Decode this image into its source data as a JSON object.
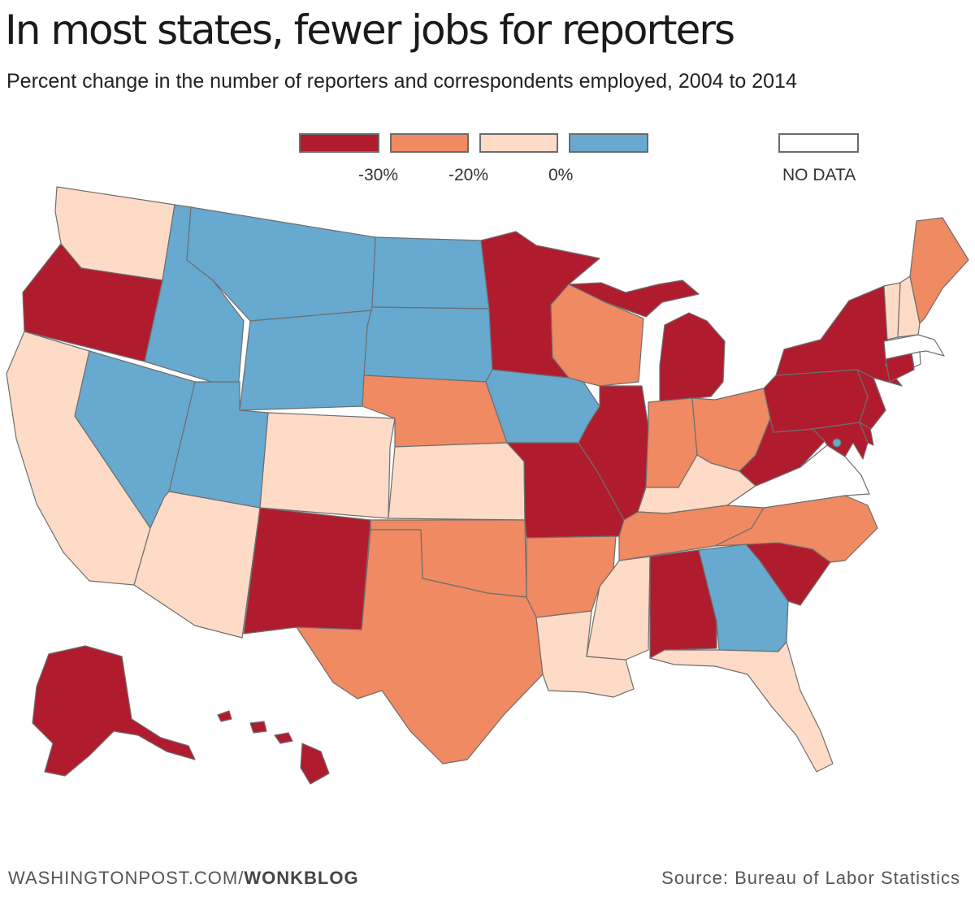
{
  "header": {
    "title": "In most states, fewer jobs for reporters",
    "subtitle": "Percent change in the number of reporters and correspondents employed, 2004 to 2014"
  },
  "legend": {
    "bins": [
      {
        "label": "below -30%",
        "color": "#b01c2e"
      },
      {
        "label": "-30% to -20%",
        "color": "#ef8a62"
      },
      {
        "label": "-20% to 0%",
        "color": "#fddbc7"
      },
      {
        "label": "above 0%",
        "color": "#67a9cf"
      }
    ],
    "breaks": [
      "-30%",
      "-20%",
      "0%"
    ],
    "no_data": {
      "label": "NO DATA",
      "color": "#ffffff"
    }
  },
  "colors": {
    "strong_decline": "#b01c2e",
    "moderate_decline": "#ef8a62",
    "slight_decline": "#fddbc7",
    "increase": "#67a9cf",
    "no_data": "#ffffff",
    "border": "#6e6e6e"
  },
  "chart_data": {
    "type": "choropleth",
    "title": "In most states, fewer jobs for reporters",
    "subtitle": "Percent change in the number of reporters and correspondents employed, 2004 to 2014",
    "bins": [
      "< -30%",
      "-30% to -20%",
      "-20% to 0%",
      "> 0%",
      "no data"
    ],
    "states": {
      "WA": "-20% to 0%",
      "OR": "< -30%",
      "CA": "-20% to 0%",
      "NV": "> 0%",
      "ID": "> 0%",
      "MT": "> 0%",
      "WY": "> 0%",
      "UT": "> 0%",
      "AZ": "-20% to 0%",
      "NM": "< -30%",
      "CO": "-20% to 0%",
      "ND": "> 0%",
      "SD": "> 0%",
      "NE": "-30% to -20%",
      "KS": "-20% to 0%",
      "OK": "-30% to -20%",
      "TX": "-30% to -20%",
      "MN": "< -30%",
      "IA": "> 0%",
      "MO": "< -30%",
      "AR": "-30% to -20%",
      "LA": "-20% to 0%",
      "WI": "-30% to -20%",
      "IL": "< -30%",
      "MI": "< -30%",
      "IN": "-30% to -20%",
      "OH": "-30% to -20%",
      "KY": "-20% to 0%",
      "TN": "-30% to -20%",
      "MS": "-20% to 0%",
      "AL": "< -30%",
      "GA": "> 0%",
      "FL": "-20% to 0%",
      "SC": "< -30%",
      "NC": "-30% to -20%",
      "VA": "no data",
      "WV": "< -30%",
      "MD": "< -30%",
      "DE": "< -30%",
      "NJ": "< -30%",
      "PA": "< -30%",
      "NY": "< -30%",
      "CT": "< -30%",
      "RI": "no data",
      "MA": "no data",
      "VT": "-20% to 0%",
      "NH": "-20% to 0%",
      "ME": "-30% to -20%",
      "DC": "> 0%",
      "AK": "< -30%",
      "HI": "< -30%"
    }
  },
  "footer": {
    "site": "WASHINGTONPOST.COM/",
    "section": "WONKBLOG",
    "source": "Source: Bureau of Labor Statistics"
  }
}
